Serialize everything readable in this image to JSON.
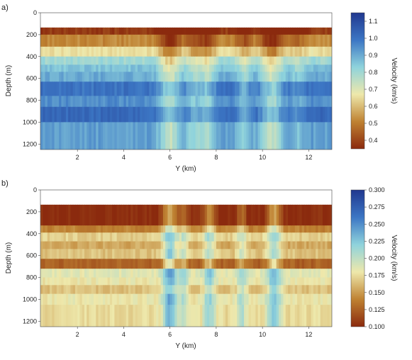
{
  "chart_data": [
    {
      "panel_label": "a)",
      "type": "heatmap",
      "xlabel": "Y (km)",
      "ylabel": "Depth (m)",
      "xlim": [
        0.4,
        13.0
      ],
      "ylim": [
        0,
        1250
      ],
      "y_inverted": true,
      "x_ticks": [
        "2",
        "4",
        "6",
        "8",
        "10",
        "12"
      ],
      "y_ticks": [
        "0",
        "200",
        "400",
        "600",
        "800",
        "1000",
        "1200"
      ],
      "colorbar_label": "Velocity (km/s)",
      "colorbar_range": [
        0.35,
        1.15
      ],
      "colorbar_ticks": [
        "0.4",
        "0.5",
        "0.6",
        "0.7",
        "0.8",
        "0.9",
        "1.0",
        "1.1"
      ],
      "colormap": [
        "#8b2a0e",
        "#bf8232",
        "#eee8ab",
        "#8fd3dc",
        "#3c76c4",
        "#21388f"
      ],
      "layers": [
        {
          "top": 135,
          "bottom": 200,
          "value": 0.38
        },
        {
          "top": 200,
          "bottom": 310,
          "value": 0.52
        },
        {
          "top": 310,
          "bottom": 400,
          "value": 0.66
        },
        {
          "top": 400,
          "bottom": 475,
          "value": 0.8
        },
        {
          "top": 475,
          "bottom": 540,
          "value": 0.86
        },
        {
          "top": 540,
          "bottom": 630,
          "value": 0.9
        },
        {
          "top": 630,
          "bottom": 760,
          "value": 1.0
        },
        {
          "top": 760,
          "bottom": 860,
          "value": 0.95
        },
        {
          "top": 860,
          "bottom": 1000,
          "value": 1.02
        },
        {
          "top": 1000,
          "bottom": 1250,
          "value": 0.92
        }
      ],
      "lateral_anomalies": [
        {
          "x": 6.0,
          "width": 0.45,
          "delta": -0.18
        },
        {
          "x": 7.0,
          "width": 0.3,
          "delta": -0.1
        },
        {
          "x": 7.6,
          "width": 0.35,
          "delta": -0.14
        },
        {
          "x": 9.2,
          "width": 0.3,
          "delta": -0.1
        },
        {
          "x": 10.4,
          "width": 0.45,
          "delta": -0.17
        },
        {
          "x": 11.5,
          "width": 0.3,
          "delta": -0.06
        }
      ]
    },
    {
      "panel_label": "b)",
      "type": "heatmap",
      "xlabel": "Y (km)",
      "ylabel": "Depth (m)",
      "xlim": [
        0.4,
        13.0
      ],
      "ylim": [
        0,
        1250
      ],
      "y_inverted": true,
      "x_ticks": [
        "2",
        "4",
        "6",
        "8",
        "10",
        "12"
      ],
      "y_ticks": [
        "0",
        "200",
        "400",
        "600",
        "800",
        "1000",
        "1200"
      ],
      "colorbar_label": "Velocity (km/s)",
      "colorbar_range": [
        0.1,
        0.3
      ],
      "colorbar_ticks": [
        "0.100",
        "0.125",
        "0.150",
        "0.175",
        "0.200",
        "0.225",
        "0.250",
        "0.275",
        "0.300"
      ],
      "colormap": [
        "#8b2a0e",
        "#bf8232",
        "#eee8ab",
        "#8fd3dc",
        "#3c76c4",
        "#21388f"
      ],
      "layers": [
        {
          "top": 135,
          "bottom": 325,
          "value": 0.1
        },
        {
          "top": 325,
          "bottom": 390,
          "value": 0.14
        },
        {
          "top": 390,
          "bottom": 470,
          "value": 0.17
        },
        {
          "top": 470,
          "bottom": 540,
          "value": 0.155
        },
        {
          "top": 540,
          "bottom": 630,
          "value": 0.165
        },
        {
          "top": 630,
          "bottom": 720,
          "value": 0.125
        },
        {
          "top": 720,
          "bottom": 800,
          "value": 0.185
        },
        {
          "top": 800,
          "bottom": 870,
          "value": 0.18
        },
        {
          "top": 870,
          "bottom": 950,
          "value": 0.165
        },
        {
          "top": 950,
          "bottom": 1050,
          "value": 0.18
        },
        {
          "top": 1050,
          "bottom": 1250,
          "value": 0.175
        }
      ],
      "lateral_anomalies": [
        {
          "x": 6.0,
          "width": 0.3,
          "delta": 0.06
        },
        {
          "x": 6.6,
          "width": 0.2,
          "delta": 0.03
        },
        {
          "x": 7.7,
          "width": 0.25,
          "delta": 0.04
        },
        {
          "x": 9.1,
          "width": 0.2,
          "delta": 0.03
        },
        {
          "x": 10.5,
          "width": 0.3,
          "delta": 0.05
        }
      ]
    }
  ]
}
